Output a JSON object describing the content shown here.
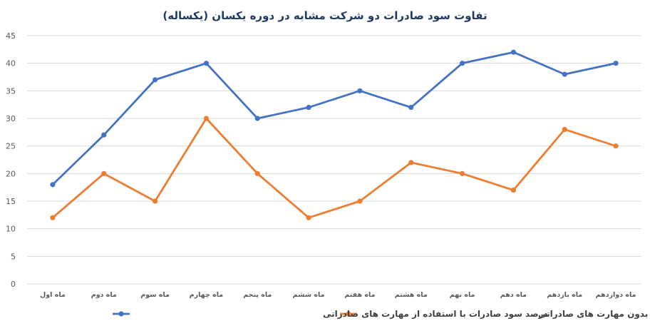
{
  "chart_data": {
    "type": "line",
    "title": "تفاوت سود صادرات دو شرکت مشابه در دوره یکسان (یکساله)",
    "categories": [
      "ماه اول",
      "ماه دوم",
      "ماه سوم",
      "ماه چهارم",
      "ماه پنجم",
      "ماه ششم",
      "ماه هفتم",
      "ماه هشتم",
      "ماه نهم",
      "ماه دهم",
      "ماه یازدهم",
      "ماه دوازدهم"
    ],
    "series": [
      {
        "name": "درصد سود صادرات با استفاده از مهارت های صادراتی",
        "color": "#4472c4",
        "values": [
          18,
          27,
          37,
          40,
          30,
          32,
          35,
          32,
          40,
          42,
          38,
          40
        ]
      },
      {
        "name": "درصد سود صادرات بدون مهارت های صادراتی",
        "color": "#ed7d31",
        "values": [
          12,
          20,
          15,
          30,
          20,
          12,
          15,
          22,
          20,
          17,
          28,
          25
        ]
      }
    ],
    "yticks": [
      "0",
      "5",
      "10",
      "15",
      "20",
      "25",
      "30",
      "35",
      "40",
      "45"
    ],
    "ylim": [
      0,
      45
    ],
    "grid": true,
    "legend_position": "bottom"
  }
}
